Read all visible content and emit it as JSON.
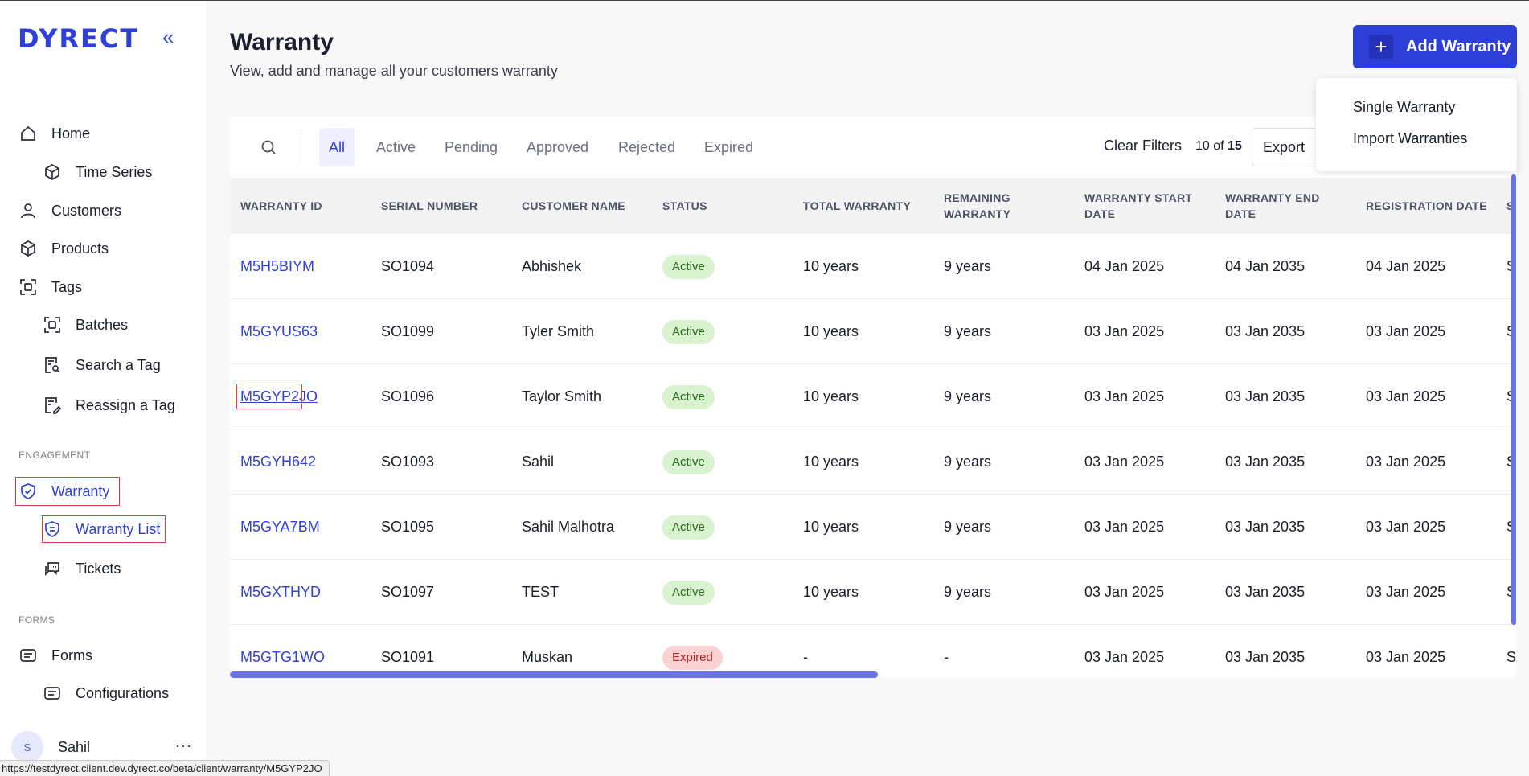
{
  "brand": {
    "logo": "DYRECT"
  },
  "sidebar": {
    "items": [
      {
        "label": "Home",
        "icon": "home-icon"
      },
      {
        "label": "Time Series",
        "icon": "cube-icon"
      },
      {
        "label": "Customers",
        "icon": "user-icon"
      },
      {
        "label": "Products",
        "icon": "cube-icon"
      },
      {
        "label": "Tags",
        "icon": "tag-scan-icon"
      },
      {
        "label": "Batches",
        "icon": "tag-scan-icon"
      },
      {
        "label": "Search a Tag",
        "icon": "doc-search-icon"
      },
      {
        "label": "Reassign a Tag",
        "icon": "doc-edit-icon"
      },
      {
        "label": "Warranty",
        "icon": "shield-check-icon"
      },
      {
        "label": "Warranty List",
        "icon": "shield-list-icon"
      },
      {
        "label": "Tickets",
        "icon": "chat-icon"
      },
      {
        "label": "Forms",
        "icon": "form-icon"
      },
      {
        "label": "Configurations",
        "icon": "form-icon"
      }
    ],
    "sections": {
      "engagement": "ENGAGEMENT",
      "forms": "FORMS"
    },
    "user": {
      "initial": "S",
      "name": "Sahil",
      "more": "···"
    }
  },
  "status_url": "https://testdyrect.client.dev.dyrect.co/beta/client/warranty/M5GYP2JO",
  "header": {
    "title": "Warranty",
    "subtitle": "View, add and manage all your customers warranty",
    "add_button": "Add Warranty",
    "add_plus": "+",
    "dropdown": [
      "Single Warranty",
      "Import Warranties"
    ]
  },
  "toolbar": {
    "tabs": [
      "All",
      "Active",
      "Pending",
      "Approved",
      "Rejected",
      "Expired"
    ],
    "selected_tab": "All",
    "clear_filters": "Clear Filters",
    "count_current": "10",
    "count_of": "of",
    "count_total": "15",
    "export": "Export"
  },
  "table": {
    "columns": [
      [
        "WARRANTY ID"
      ],
      [
        "SERIAL NUMBER"
      ],
      [
        "CUSTOMER NAME"
      ],
      [
        "STATUS"
      ],
      [
        "TOTAL WARRANTY"
      ],
      [
        "REMAINING",
        "WARRANTY"
      ],
      [
        "WARRANTY START",
        "DATE"
      ],
      [
        "WARRANTY END",
        "DATE"
      ],
      [
        "REGISTRATION DATE"
      ],
      [
        "S"
      ]
    ],
    "rows": [
      {
        "id": "M5H5BIYM",
        "serial": "SO1094",
        "customer": "Abhishek",
        "status": "Active",
        "total": "10 years",
        "remaining": "9 years",
        "start": "04 Jan 2025",
        "end": "04 Jan 2035",
        "registered": "04 Jan 2025",
        "extra": "S"
      },
      {
        "id": "M5GYUS63",
        "serial": "SO1099",
        "customer": "Tyler Smith",
        "status": "Active",
        "total": "10 years",
        "remaining": "9 years",
        "start": "03 Jan 2025",
        "end": "03 Jan 2035",
        "registered": "03 Jan 2025",
        "extra": "S"
      },
      {
        "id": "M5GYP2JO",
        "serial": "SO1096",
        "customer": "Taylor Smith",
        "status": "Active",
        "total": "10 years",
        "remaining": "9 years",
        "start": "03 Jan 2025",
        "end": "03 Jan 2035",
        "registered": "03 Jan 2025",
        "extra": "S"
      },
      {
        "id": "M5GYH642",
        "serial": "SO1093",
        "customer": "Sahil",
        "status": "Active",
        "total": "10 years",
        "remaining": "9 years",
        "start": "03 Jan 2025",
        "end": "03 Jan 2035",
        "registered": "03 Jan 2025",
        "extra": "S"
      },
      {
        "id": "M5GYA7BM",
        "serial": "SO1095",
        "customer": "Sahil Malhotra",
        "status": "Active",
        "total": "10 years",
        "remaining": "9 years",
        "start": "03 Jan 2025",
        "end": "03 Jan 2035",
        "registered": "03 Jan 2025",
        "extra": "S"
      },
      {
        "id": "M5GXTHYD",
        "serial": "SO1097",
        "customer": "TEST",
        "status": "Active",
        "total": "10 years",
        "remaining": "9 years",
        "start": "03 Jan 2025",
        "end": "03 Jan 2035",
        "registered": "03 Jan 2025",
        "extra": "S"
      },
      {
        "id": "M5GTG1WO",
        "serial": "SO1091",
        "customer": "Muskan",
        "status": "Expired",
        "total": "-",
        "remaining": "-",
        "start": "03 Jan 2025",
        "end": "03 Jan 2035",
        "registered": "03 Jan 2025",
        "extra": "S"
      }
    ]
  },
  "colors": {
    "accent": "#2f3fd9",
    "active_badge": "#d9f2cf",
    "expired_badge": "#fbd2d2"
  }
}
